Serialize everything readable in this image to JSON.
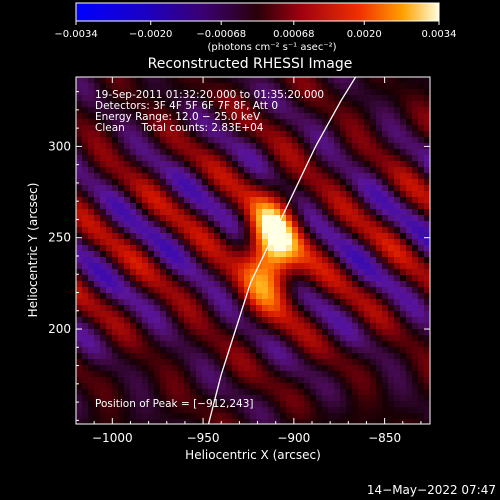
{
  "chart_data": {
    "type": "heatmap",
    "title": "Reconstructed RHESSI Image",
    "xlabel": "Heliocentric X (arcsec)",
    "ylabel": "Heliocentric Y (arcsec)",
    "xlim": [
      -1020,
      -825
    ],
    "ylim": [
      148,
      338
    ],
    "x_ticks": [
      -1000,
      -950,
      -900,
      -850
    ],
    "y_ticks": [
      200,
      250,
      300
    ],
    "x_tick_labels": [
      "−1000",
      "−950",
      "−900",
      "−850"
    ],
    "y_tick_labels": [
      "200",
      "250",
      "300"
    ],
    "colorbar": {
      "min": -0.0034,
      "max": 0.0034,
      "ticks": [
        -0.0034,
        -0.002,
        -0.00068,
        0.00068,
        0.002,
        0.0034
      ],
      "tick_labels": [
        "−0.0034",
        "−0.0020",
        "−0.00068",
        "0.00068",
        "0.0020",
        "0.0034"
      ],
      "units_label": "(photons cm⁻² s⁻¹ asec⁻²)"
    },
    "info_lines": [
      "19-Sep-2011 01:32:20.000 to 01:35:20.000",
      "Detectors: 3F 4F 5F 6F 7F 8F, Att 0",
      "Energy Range: 12.0 − 25.0 keV",
      "Clean     Total counts: 2.83E+04"
    ],
    "peak_label": "Position of Peak = [−912,243]",
    "peak": {
      "x": -912,
      "y": 243
    },
    "limb_curve": [
      [
        -947,
        148
      ],
      [
        -940,
        175
      ],
      [
        -932,
        200
      ],
      [
        -924,
        225
      ],
      [
        -912,
        250
      ],
      [
        -900,
        275
      ],
      [
        -888,
        300
      ],
      [
        -874,
        325
      ],
      [
        -866,
        338
      ]
    ]
  },
  "timestamp": "14−May−2022 07:47"
}
